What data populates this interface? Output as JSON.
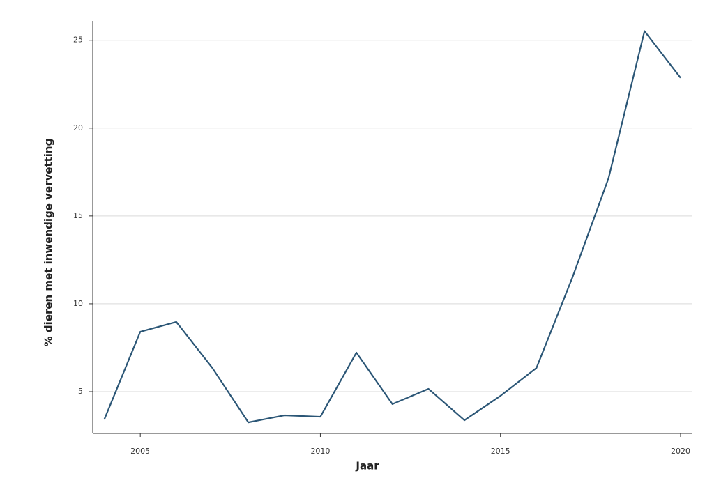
{
  "chart_data": {
    "type": "line",
    "x_label": "Jaar",
    "y_label": "% dieren met inwendige vervetting",
    "x": [
      2004,
      2005,
      2006,
      2007,
      2008,
      2009,
      2010,
      2011,
      2012,
      2013,
      2014,
      2015,
      2016,
      2017,
      2018,
      2019,
      2020
    ],
    "values": [
      3.41,
      8.41,
      8.97,
      6.35,
      3.25,
      3.65,
      3.57,
      7.22,
      4.29,
      5.16,
      3.37,
      4.76,
      6.35,
      11.51,
      17.14,
      25.52,
      22.86
    ],
    "color": "#2b5676",
    "xlim": [
      2003.68,
      2020.33
    ],
    "xticks": [
      2005,
      2010,
      2015,
      2020
    ],
    "ylim": [
      2.62,
      26.1
    ],
    "yticks": [
      5,
      10,
      15,
      20,
      25
    ],
    "grid": true
  }
}
